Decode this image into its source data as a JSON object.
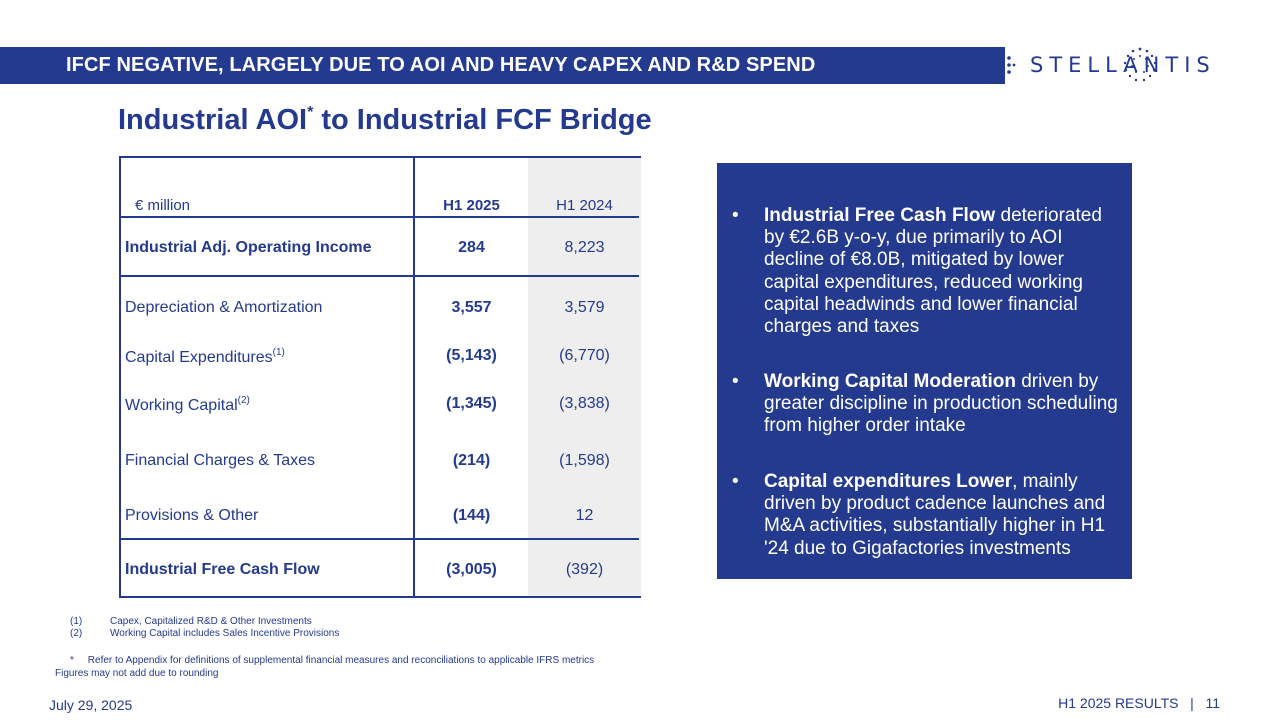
{
  "banner": {
    "title": "IFCF NEGATIVE, LARGELY DUE TO AOI AND HEAVY CAPEX AND R&D SPEND"
  },
  "logo": {
    "text": "STELLANTIS",
    "accent_color": "#243a8f"
  },
  "heading": {
    "text": "Industrial AOI",
    "sup": "*",
    "suffix": " to Industrial FCF Bridge"
  },
  "table": {
    "unit_label": "€ million",
    "col_h1_2025": "H1 2025",
    "col_h1_2024": "H1 2024",
    "rows": [
      {
        "label": "Industrial Adj. Operating Income",
        "sup": "",
        "h1_2025": "284",
        "h1_2024": "8,223"
      },
      {
        "label": "Depreciation & Amortization",
        "sup": "",
        "h1_2025": "3,557",
        "h1_2024": "3,579"
      },
      {
        "label": "Capital Expenditures",
        "sup": "(1)",
        "h1_2025": "(5,143)",
        "h1_2024": "(6,770)"
      },
      {
        "label": "Working Capital",
        "sup": "(2)",
        "h1_2025": "(1,345)",
        "h1_2024": "(3,838)"
      },
      {
        "label": "Financial Charges & Taxes",
        "sup": "",
        "h1_2025": "(214)",
        "h1_2024": "(1,598)"
      },
      {
        "label": "Provisions & Other",
        "sup": "",
        "h1_2025": "(144)",
        "h1_2024": "12"
      },
      {
        "label": "Industrial Free Cash Flow",
        "sup": "",
        "h1_2025": "(3,005)",
        "h1_2024": "(392)"
      }
    ]
  },
  "panel": {
    "bullet_glyph": "•",
    "bullets": [
      {
        "bold": "Industrial Free Cash Flow",
        "text": " deteriorated by €2.6B y-o-y, due primarily to AOI decline of €8.0B, mitigated by lower capital expenditures, reduced working capital headwinds and lower financial charges and taxes"
      },
      {
        "bold": "Working Capital Moderation",
        "text": " driven by greater discipline in production scheduling from higher order intake"
      },
      {
        "bold": "Capital expenditures Lower",
        "text": ", mainly driven by product cadence launches and M&A activities, substantially higher in H1 '24 due to Gigafactories investments"
      }
    ]
  },
  "footnotes": {
    "n1": "(1)",
    "t1": "Capex, Capitalized R&D & Other Investments",
    "n2": "(2)",
    "t2": "Working Capital includes Sales Incentive Provisions",
    "star": "*     Refer to Appendix for definitions of supplemental financial measures and reconciliations to applicable IFRS metrics",
    "rounding": "Figures may not add due to rounding"
  },
  "footer": {
    "date": "July 29, 2025",
    "right": "H1 2025 RESULTS   |   11"
  }
}
